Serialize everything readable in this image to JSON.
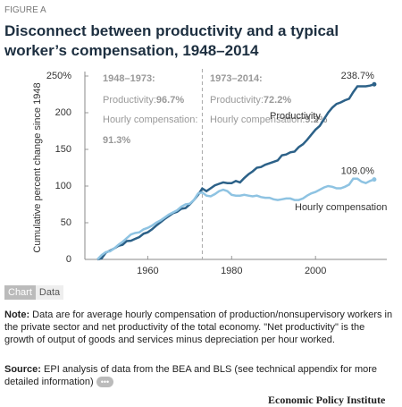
{
  "figure_label": "FIGURE A",
  "chart_data": {
    "type": "line",
    "title": "Disconnect between productivity and a typical worker’s compensation, 1948–2014",
    "ylabel": "Cumulative percent change since 1948",
    "x": [
      1948,
      1949,
      1950,
      1951,
      1952,
      1953,
      1954,
      1955,
      1956,
      1957,
      1958,
      1959,
      1960,
      1961,
      1962,
      1963,
      1964,
      1965,
      1966,
      1967,
      1968,
      1969,
      1970,
      1971,
      1972,
      1973,
      1974,
      1975,
      1976,
      1977,
      1978,
      1979,
      1980,
      1981,
      1982,
      1983,
      1984,
      1985,
      1986,
      1987,
      1988,
      1989,
      1990,
      1991,
      1992,
      1993,
      1994,
      1995,
      1996,
      1997,
      1998,
      1999,
      2000,
      2001,
      2002,
      2003,
      2004,
      2005,
      2006,
      2007,
      2008,
      2009,
      2010,
      2011,
      2012,
      2013,
      2014
    ],
    "series": [
      {
        "name": "Productivity",
        "color": "#2c6188",
        "end_label": "238.7%",
        "values": [
          0,
          1.5,
          9.3,
          12,
          15,
          18.5,
          20,
          25,
          25.5,
          28,
          30.5,
          35,
          37,
          41,
          46,
          50.5,
          55,
          59,
          63,
          65,
          69,
          70,
          75,
          81,
          88,
          96.7,
          93,
          97,
          101,
          103,
          105,
          104,
          104,
          107,
          105,
          111,
          116,
          120,
          125,
          126,
          129,
          131,
          133,
          135,
          142,
          143,
          146,
          147,
          153,
          157,
          163,
          170,
          177,
          182,
          191,
          200,
          207,
          212,
          214,
          217,
          219,
          228,
          236,
          236,
          236,
          237,
          238.7
        ]
      },
      {
        "name": "Hourly compensation",
        "color": "#8ec3e2",
        "end_label": "109.0%",
        "values": [
          0,
          6,
          10,
          11,
          15,
          20,
          24,
          29,
          34,
          36,
          37,
          41,
          43,
          46,
          50,
          53,
          57,
          61,
          64,
          67,
          72,
          75,
          76,
          81,
          90,
          91.3,
          87,
          86,
          89,
          93,
          95,
          93,
          88,
          87,
          87,
          88,
          87,
          86,
          87,
          85,
          84,
          84,
          82,
          81,
          82,
          83,
          83,
          81,
          81,
          83,
          87,
          90,
          92,
          95,
          98,
          100,
          99,
          97,
          97,
          99,
          102,
          110,
          110,
          106,
          104,
          107,
          109
        ]
      }
    ],
    "xlim": [
      1945,
      2017
    ],
    "xticks": [
      1960,
      1980,
      2000
    ],
    "ylim": [
      0,
      250
    ],
    "yticks": [
      0,
      50,
      100,
      150,
      {
        "value": 200,
        "label": "200"
      },
      {
        "value": 250,
        "label": "250%"
      }
    ],
    "divider_x": 1973,
    "annotations": [
      "1948–1973:",
      "Productivity: ",
      "96.7%",
      "Hourly compensation:",
      "91.3%",
      "1973–2014:",
      "Productivity: ",
      "72.2%",
      "Hourly compensation: ",
      "9.2%"
    ]
  },
  "tabs": [
    "Chart",
    "Data"
  ],
  "note": {
    "label": "Note:",
    "text": "Data are for average hourly compensation of production/nonsupervisory workers in the private sector and net productivity of the total economy. \"Net productivity\" is the growth of output of goods and services minus depreciation per hour worked."
  },
  "source": {
    "label": "Source:",
    "text": "EPI analysis of data from the BEA and BLS (see technical appendix for more detailed information)"
  },
  "footer": "Economic Policy Institute"
}
